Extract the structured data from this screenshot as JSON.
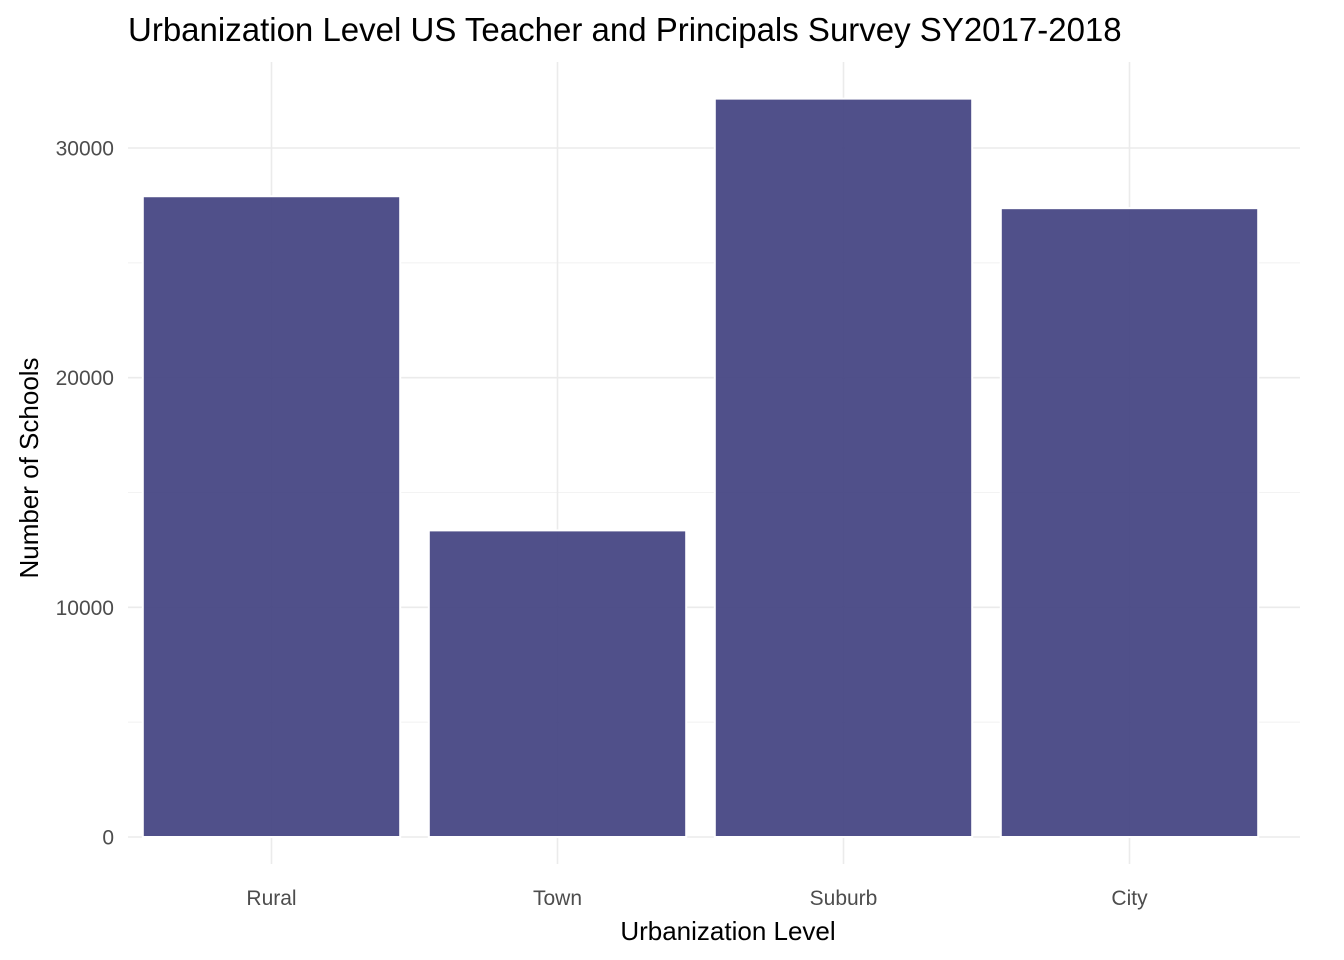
{
  "chart_data": {
    "type": "bar",
    "title": "Urbanization Level US Teacher and Principals Survey SY2017-2018",
    "xlabel": "Urbanization Level",
    "ylabel": "Number of Schools",
    "categories": [
      "Rural",
      "Town",
      "Suburb",
      "City"
    ],
    "values": [
      27900,
      13350,
      32150,
      27380
    ],
    "ylim": [
      0,
      32150
    ],
    "yticks": [
      0,
      10000,
      20000,
      30000
    ],
    "ytick_labels": [
      "0",
      "10000",
      "20000",
      "30000"
    ],
    "grid": true,
    "legend": "none",
    "bar_color": "#414180",
    "bar_outline": "#ffffff"
  }
}
